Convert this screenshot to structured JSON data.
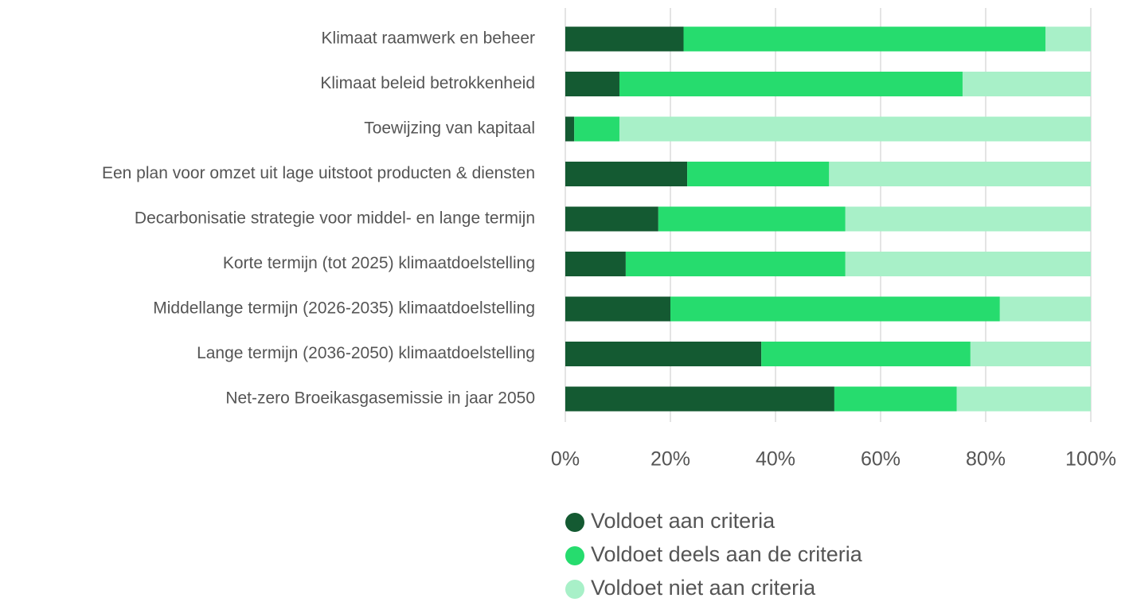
{
  "chart_data": {
    "type": "bar",
    "orientation": "horizontal",
    "stacked": true,
    "categories": [
      "Klimaat raamwerk en beheer",
      "Klimaat beleid betrokkenheid",
      "Toewijzing van kapitaal",
      "Een plan voor omzet uit lage uitstoot producten & diensten",
      "Decarbonisatie strategie voor middel- en lange termijn",
      "Korte termijn (tot 2025) klimaatdoelstelling",
      "Middellange termijn (2026-2035) klimaatdoelstelling",
      "Lange termijn (2036-2050) klimaatdoelstelling",
      "Net-zero Broeikasgasemissie in jaar 2050"
    ],
    "series": [
      {
        "name": "Voldoet aan criteria",
        "color": "#145a32",
        "values": [
          22.5,
          10.3,
          1.7,
          23.2,
          17.7,
          11.5,
          20,
          37.3,
          51.2
        ]
      },
      {
        "name": "Voldoet deels aan de criteria",
        "color": "#26dc6e",
        "values": [
          68.9,
          65.3,
          8.6,
          27,
          35.6,
          41.8,
          62.7,
          39.8,
          23.3
        ]
      },
      {
        "name": "Voldoet niet aan criteria",
        "color": "#a8f0c8",
        "values": [
          8.6,
          24.4,
          89.7,
          49.8,
          46.7,
          46.7,
          17.3,
          22.9,
          25.5
        ]
      }
    ],
    "xlim": [
      0,
      100
    ],
    "xticks": [
      {
        "value": 0,
        "label": "0%"
      },
      {
        "value": 20,
        "label": "20%"
      },
      {
        "value": 40,
        "label": "40%"
      },
      {
        "value": 60,
        "label": "60%"
      },
      {
        "value": 80,
        "label": "80%"
      },
      {
        "value": 100,
        "label": "100%"
      }
    ],
    "grid": true,
    "legend": "bottom"
  }
}
